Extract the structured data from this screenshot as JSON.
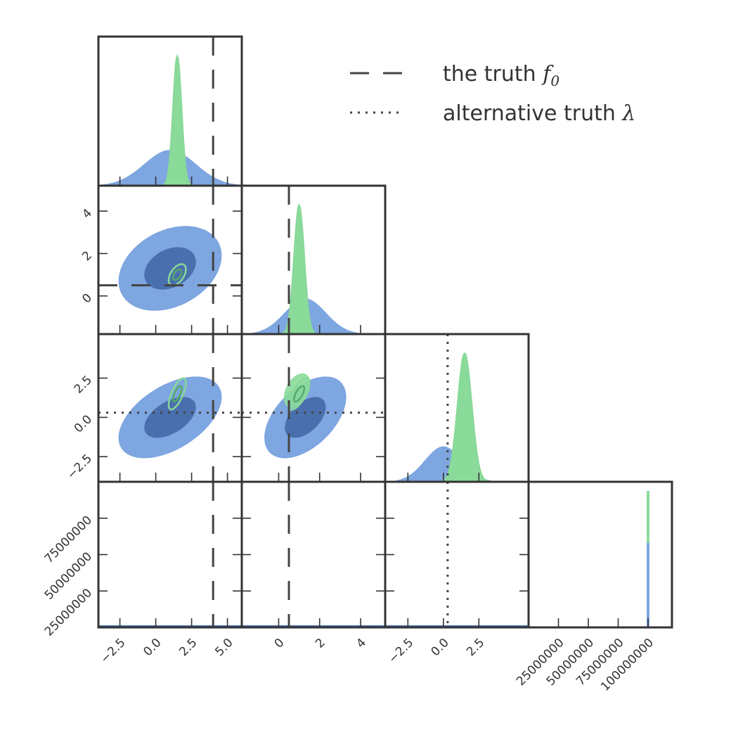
{
  "chart_data": {
    "type": "corner",
    "colors": {
      "blue_fill": "#7ea6e0",
      "blue_inner": "#4a6fae",
      "green_fill": "#8adb9a",
      "green_line": "#88d898",
      "green_inner": "#55aa6a",
      "truth_line": "#444444",
      "frame": "#333333"
    },
    "series": [
      {
        "color": "green",
        "means": [
          1.5,
          1.0,
          1.5,
          100000000.0
        ],
        "sds": [
          0.3,
          0.25,
          0.5,
          0
        ]
      },
      {
        "color": "blue",
        "means": [
          1.0,
          1.3,
          0.0,
          100000000.0
        ],
        "sds": [
          1.8,
          1.0,
          1.3,
          0
        ]
      }
    ],
    "truth": {
      "label": "the truth ",
      "symbol": "f",
      "subscript": "0",
      "style": "dashed",
      "values": [
        4.0,
        0.5,
        null,
        null
      ]
    },
    "alternative_truth": {
      "label": "alternative truth ",
      "symbol": "λ",
      "style": "dotted",
      "values": [
        null,
        null,
        0.3,
        null
      ]
    },
    "axes": {
      "x": [
        {
          "range": [
            -4,
            6
          ],
          "ticks": [
            -2.5,
            0.0,
            2.5,
            5.0
          ],
          "tick_labels": [
            "−2.5",
            "0.0",
            "2.5",
            "5.0"
          ]
        },
        {
          "range": [
            -1.8,
            5.2
          ],
          "ticks": [
            0,
            2,
            4
          ],
          "tick_labels": [
            "0",
            "2",
            "4"
          ]
        },
        {
          "range": [
            -4.1,
            6
          ],
          "ticks": [
            -2.5,
            0.0,
            2.5
          ],
          "tick_labels": [
            "−2.5",
            "0.0",
            "2.5"
          ]
        },
        {
          "range": [
            0,
            120000000
          ],
          "ticks": [
            25000000,
            50000000,
            75000000,
            100000000
          ],
          "tick_labels": [
            "25000000",
            "50000000",
            "75000000",
            "100000000"
          ]
        }
      ],
      "y": [
        null,
        {
          "range": [
            -1.8,
            5.2
          ],
          "ticks": [
            0,
            2,
            4
          ],
          "tick_labels": [
            "0",
            "2",
            "4"
          ]
        },
        {
          "range": [
            -4.1,
            5.3
          ],
          "ticks": [
            -2.5,
            0.0,
            2.5
          ],
          "tick_labels": [
            "−2.5",
            "0.0",
            "2.5"
          ]
        },
        {
          "range": [
            0,
            100000000
          ],
          "ticks": [
            25000000,
            50000000,
            75000000
          ],
          "tick_labels": [
            "25000000",
            "50000000",
            "75000000"
          ]
        }
      ]
    },
    "legend": {
      "placement": "top-right"
    },
    "grid": false
  }
}
